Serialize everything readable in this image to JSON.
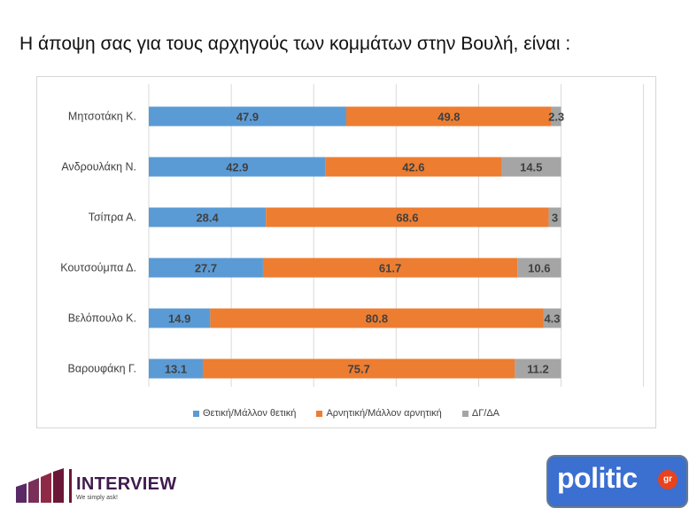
{
  "title": "Η άποψη σας για τους αρχηγούς των κομμάτων στην Βουλή,  είναι :",
  "colors": {
    "positive": "#5b9bd5",
    "negative": "#ed7d31",
    "dkna": "#a5a5a5",
    "label_dark": "#404040"
  },
  "chart_data": {
    "type": "bar",
    "orientation": "horizontal",
    "stacked": true,
    "categories": [
      "Μητσοτάκη Κ.",
      "Ανδρουλάκη Ν.",
      "Τσίπρα Α.",
      "Κουτσούμπα Δ.",
      "Βελόπουλο Κ.",
      "Βαρουφάκη Γ."
    ],
    "series": [
      {
        "name": "Θετική/Μάλλον θετική",
        "color": "#5b9bd5",
        "values": [
          47.9,
          42.9,
          28.4,
          27.7,
          14.9,
          13.1
        ]
      },
      {
        "name": "Αρνητική/Μάλλον αρνητική",
        "color": "#ed7d31",
        "values": [
          49.8,
          42.6,
          68.6,
          61.7,
          80.8,
          75.7
        ]
      },
      {
        "name": "ΔΓ/ΔΑ",
        "color": "#a5a5a5",
        "values": [
          2.3,
          14.5,
          3,
          10.6,
          4.3,
          11.2
        ]
      }
    ],
    "xlim": [
      0,
      120
    ],
    "grid": true,
    "legend_position": "bottom"
  },
  "logos": {
    "interview": {
      "name": "INTERVIEW",
      "tagline": "We simply ask!"
    },
    "politic": {
      "name": "politic",
      "badge": "gr"
    }
  }
}
